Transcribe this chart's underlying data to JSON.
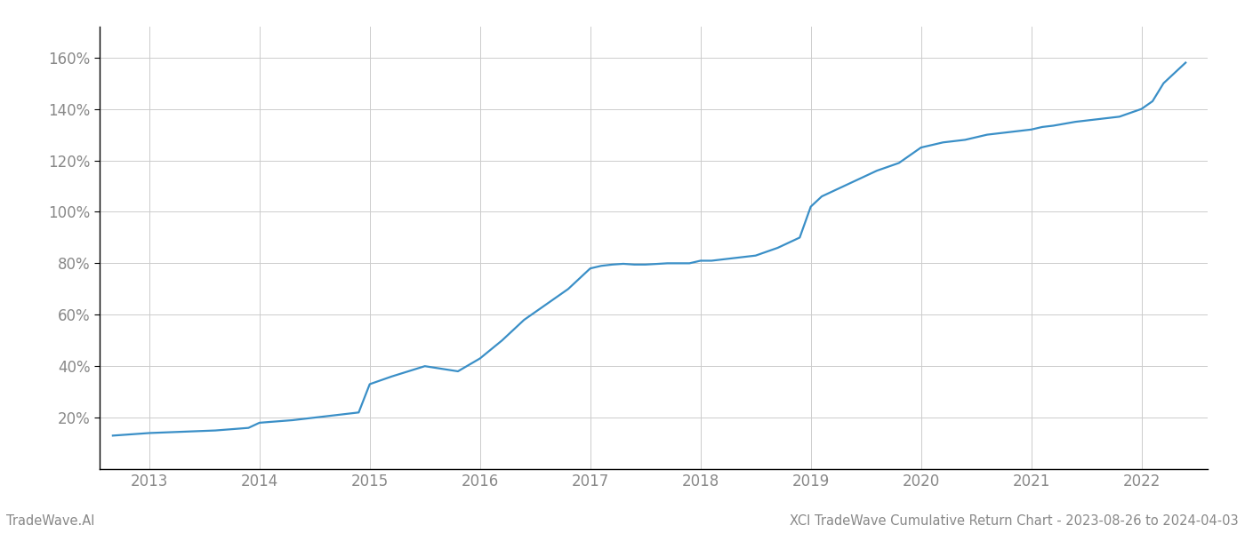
{
  "footer_left": "TradeWave.AI",
  "footer_right": "XCI TradeWave Cumulative Return Chart - 2023-08-26 to 2024-04-03",
  "line_color": "#3a8fc7",
  "line_width": 1.6,
  "background_color": "#ffffff",
  "grid_color": "#cccccc",
  "x_tick_labels": [
    "2013",
    "2014",
    "2015",
    "2016",
    "2017",
    "2018",
    "2019",
    "2020",
    "2021",
    "2022"
  ],
  "y_ticks": [
    20,
    40,
    60,
    80,
    100,
    120,
    140,
    160
  ],
  "ylim": [
    0,
    172
  ],
  "xlim": [
    2012.55,
    2022.6
  ],
  "data_x": [
    2012.67,
    2013.0,
    2013.3,
    2013.6,
    2013.9,
    2014.0,
    2014.15,
    2014.3,
    2014.6,
    2014.9,
    2015.0,
    2015.2,
    2015.5,
    2015.8,
    2016.0,
    2016.2,
    2016.4,
    2016.6,
    2016.8,
    2017.0,
    2017.1,
    2017.2,
    2017.3,
    2017.4,
    2017.5,
    2017.7,
    2017.9,
    2018.0,
    2018.1,
    2018.2,
    2018.3,
    2018.5,
    2018.7,
    2018.9,
    2019.0,
    2019.1,
    2019.2,
    2019.4,
    2019.6,
    2019.8,
    2020.0,
    2020.1,
    2020.2,
    2020.4,
    2020.6,
    2020.8,
    2021.0,
    2021.1,
    2021.2,
    2021.4,
    2021.6,
    2021.8,
    2022.0,
    2022.1,
    2022.2,
    2022.4
  ],
  "data_y": [
    13,
    14,
    14.5,
    15,
    16,
    18,
    18.5,
    19,
    20.5,
    22,
    33,
    36,
    40,
    38,
    43,
    50,
    58,
    64,
    70,
    78,
    79,
    79.5,
    79.8,
    79.5,
    79.5,
    80,
    80,
    81,
    81,
    81.5,
    82,
    83,
    86,
    90,
    102,
    106,
    108,
    112,
    116,
    119,
    125,
    126,
    127,
    128,
    130,
    131,
    132,
    133,
    133.5,
    135,
    136,
    137,
    140,
    143,
    150,
    158
  ],
  "tick_label_color": "#888888",
  "footer_fontsize": 10.5,
  "spine_color": "#000000"
}
